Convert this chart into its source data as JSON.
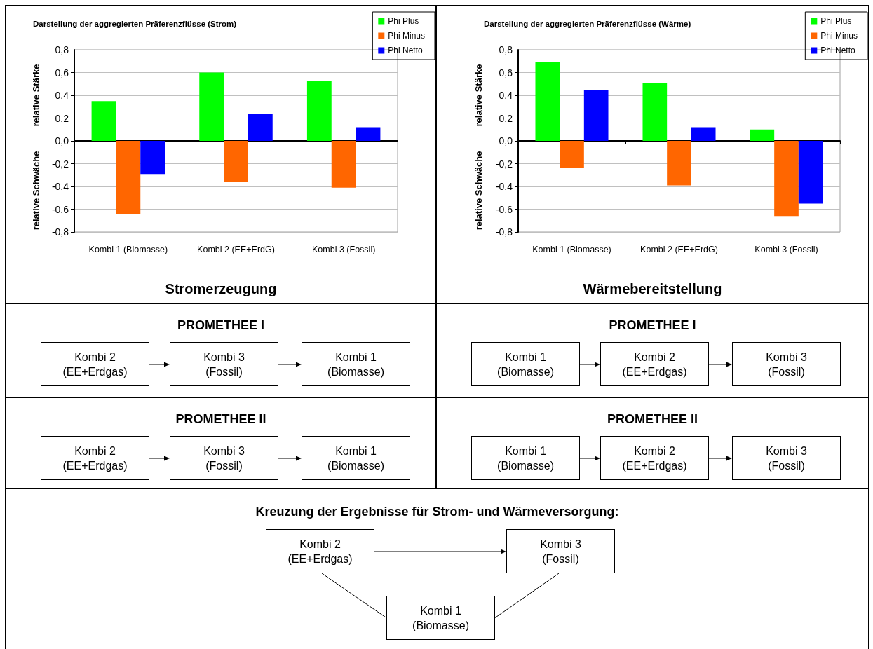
{
  "chart_data": [
    {
      "type": "bar",
      "title": "Darstellung der aggregierten Präferenzflüsse (Strom)",
      "xlabel": "Stromerzeugung",
      "ylabel": "relative Stärke",
      "annotations": [
        "relative Schwäche"
      ],
      "categories": [
        "Kombi 1 (Biomasse)",
        "Kombi 2 (EE+ErdG)",
        "Kombi 3 (Fossil)"
      ],
      "series": [
        {
          "name": "Phi Plus",
          "color": "#00ff00",
          "values": [
            0.35,
            0.6,
            0.53
          ]
        },
        {
          "name": "Phi Minus",
          "color": "#ff6600",
          "values": [
            -0.64,
            -0.36,
            -0.41
          ]
        },
        {
          "name": "Phi Netto",
          "color": "#0000ff",
          "values": [
            -0.29,
            0.24,
            0.12
          ]
        }
      ],
      "ylim": [
        -0.8,
        0.8
      ],
      "yticks": [
        {
          "value": -0.8,
          "label": "-0,8"
        },
        {
          "value": -0.6,
          "label": "-0,6"
        },
        {
          "value": -0.4,
          "label": "-0,4"
        },
        {
          "value": -0.2,
          "label": "-0,2"
        },
        {
          "value": 0,
          "label": "0,0"
        },
        {
          "value": 0.2,
          "label": "0,2"
        },
        {
          "value": 0.4,
          "label": "0,4"
        },
        {
          "value": 0.6,
          "label": "0,6"
        },
        {
          "value": 0.8,
          "label": "0,8"
        }
      ],
      "grid": "y",
      "legend": "top right"
    },
    {
      "type": "bar",
      "title": "Darstellung der aggregierten Präferenzflüsse (Wärme)",
      "xlabel": "Wärmebereitstellung",
      "ylabel": "relative Stärke",
      "annotations": [
        "relative Schwäche"
      ],
      "categories": [
        "Kombi 1 (Biomasse)",
        "Kombi 2 (EE+ErdG)",
        "Kombi 3 (Fossil)"
      ],
      "series": [
        {
          "name": "Phi Plus",
          "color": "#00ff00",
          "values": [
            0.69,
            0.51,
            0.1
          ]
        },
        {
          "name": "Phi Minus",
          "color": "#ff6600",
          "values": [
            -0.24,
            -0.39,
            -0.66
          ]
        },
        {
          "name": "Phi Netto",
          "color": "#0000ff",
          "values": [
            0.45,
            0.12,
            -0.55
          ]
        }
      ],
      "ylim": [
        -0.8,
        0.8
      ],
      "yticks": [
        {
          "value": -0.8,
          "label": "-0,8"
        },
        {
          "value": -0.6,
          "label": "-0,6"
        },
        {
          "value": -0.4,
          "label": "-0,4"
        },
        {
          "value": -0.2,
          "label": "-0,2"
        },
        {
          "value": 0,
          "label": "0,0"
        },
        {
          "value": 0.2,
          "label": "0,2"
        },
        {
          "value": 0.4,
          "label": "0,4"
        },
        {
          "value": 0.6,
          "label": "0,6"
        },
        {
          "value": 0.8,
          "label": "0,8"
        }
      ],
      "grid": "y",
      "legend": "top right"
    },
    {
      "type": "other",
      "title": "PROMETHEE I",
      "annotations": [
        "Kombi 2\n(EE+Erdgas)",
        "Kombi 3\n(Fossil)",
        "Kombi 1\n(Biomasse)"
      ]
    },
    {
      "type": "other",
      "title": "PROMETHEE I",
      "annotations": [
        "Kombi 1\n(Biomasse)",
        "Kombi 2\n(EE+Erdgas)",
        "Kombi 3\n(Fossil)"
      ]
    },
    {
      "type": "other",
      "title": "PROMETHEE II",
      "annotations": [
        "Kombi 2\n(EE+Erdgas)",
        "Kombi 3\n(Fossil)",
        "Kombi 1\n(Biomasse)"
      ]
    },
    {
      "type": "other",
      "title": "PROMETHEE II",
      "annotations": [
        "Kombi 1\n(Biomasse)",
        "Kombi 2\n(EE+Erdgas)",
        "Kombi 3\n(Fossil)"
      ]
    },
    {
      "type": "other",
      "title": "Kreuzung der Ergebnisse für Strom- und Wärmeversorgung:",
      "annotations": [
        "Kombi 2\n(EE+Erdgas)",
        "Kombi 3\n(Fossil)",
        "Kombi 1\n(Biomasse)"
      ]
    }
  ]
}
